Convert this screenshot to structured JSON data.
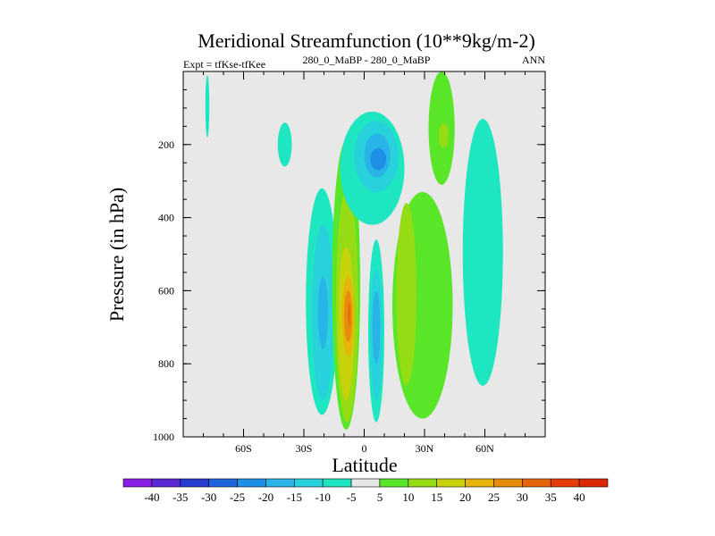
{
  "chart_data": {
    "type": "contour",
    "title": "Meridional Streamfunction (10**9kg/m-2)",
    "subtitle_left": "Expt = tfKse-tfKee",
    "subtitle_center": "280_0_MaBP - 280_0_MaBP",
    "subtitle_right": "ANN",
    "xlabel": "Latitude",
    "ylabel": "Pressure (in hPa)",
    "xlim": [
      -90,
      90
    ],
    "ylim": [
      0,
      1000
    ],
    "x_ticks": [
      {
        "value": -60,
        "label": "60S"
      },
      {
        "value": -30,
        "label": "30S"
      },
      {
        "value": 0,
        "label": "0"
      },
      {
        "value": 30,
        "label": "30N"
      },
      {
        "value": 60,
        "label": "60N"
      }
    ],
    "y_ticks": [
      {
        "value": 200,
        "label": "200"
      },
      {
        "value": 400,
        "label": "400"
      },
      {
        "value": 600,
        "label": "600"
      },
      {
        "value": 800,
        "label": "800"
      },
      {
        "value": 1000,
        "label": "1000"
      }
    ],
    "colorbar": {
      "labels": [
        "-40",
        "-35",
        "-30",
        "-25",
        "-20",
        "-15",
        "-10",
        "-5",
        "5",
        "10",
        "15",
        "20",
        "25",
        "30",
        "35",
        "40"
      ],
      "colors": [
        "#8a1ee6",
        "#5a28d2",
        "#283cd2",
        "#1e64dc",
        "#1e90e6",
        "#28b4e6",
        "#28d2dc",
        "#1ee6c0",
        "#e8e8e8",
        "#5ae628",
        "#96dc14",
        "#c8d20a",
        "#e6b40a",
        "#e68c0a",
        "#e6640a",
        "#e63c0a",
        "#dc2800"
      ]
    },
    "regions": [
      {
        "lat_range": [
          -79,
          -77
        ],
        "p_range": [
          10,
          180
        ],
        "value": -7
      },
      {
        "lat_range": [
          -43,
          -36
        ],
        "p_range": [
          140,
          260
        ],
        "value": -7
      },
      {
        "lat_range": [
          -29,
          -13
        ],
        "p_range": [
          320,
          940
        ],
        "value": -7
      },
      {
        "lat_range": [
          -26,
          -15
        ],
        "p_range": [
          420,
          900
        ],
        "value": -12
      },
      {
        "lat_range": [
          -23,
          -18
        ],
        "p_range": [
          560,
          760
        ],
        "value": -17
      },
      {
        "lat_range": [
          -16,
          -2
        ],
        "p_range": [
          190,
          980
        ],
        "value": 7
      },
      {
        "lat_range": [
          -14,
          -3
        ],
        "p_range": [
          320,
          960
        ],
        "value": 12
      },
      {
        "lat_range": [
          -13,
          -5
        ],
        "p_range": [
          480,
          900
        ],
        "value": 17
      },
      {
        "lat_range": [
          -11,
          -5
        ],
        "p_range": [
          560,
          780
        ],
        "value": 22
      },
      {
        "lat_range": [
          -10,
          -6
        ],
        "p_range": [
          600,
          740
        ],
        "value": 27
      },
      {
        "lat_range": [
          -8,
          -7
        ],
        "p_range": [
          630,
          700
        ],
        "value": 32
      },
      {
        "lat_range": [
          -12,
          20
        ],
        "p_range": [
          110,
          420
        ],
        "value": -7
      },
      {
        "lat_range": [
          -5,
          17
        ],
        "p_range": [
          135,
          330
        ],
        "value": -12
      },
      {
        "lat_range": [
          0,
          13
        ],
        "p_range": [
          170,
          290
        ],
        "value": -17
      },
      {
        "lat_range": [
          3,
          11
        ],
        "p_range": [
          210,
          270
        ],
        "value": -22
      },
      {
        "lat_range": [
          2,
          10
        ],
        "p_range": [
          460,
          960
        ],
        "value": -7
      },
      {
        "lat_range": [
          3,
          9
        ],
        "p_range": [
          540,
          900
        ],
        "value": -12
      },
      {
        "lat_range": [
          4,
          8
        ],
        "p_range": [
          600,
          800
        ],
        "value": -17
      },
      {
        "lat_range": [
          14,
          44
        ],
        "p_range": [
          330,
          950
        ],
        "value": 7
      },
      {
        "lat_range": [
          16,
          26
        ],
        "p_range": [
          360,
          860
        ],
        "value": 12
      },
      {
        "lat_range": [
          32,
          45
        ],
        "p_range": [
          0,
          310
        ],
        "value": 7
      },
      {
        "lat_range": [
          37,
          42
        ],
        "p_range": [
          140,
          210
        ],
        "value": 12
      },
      {
        "lat_range": [
          49,
          69
        ],
        "p_range": [
          130,
          860
        ],
        "value": -7
      }
    ]
  }
}
